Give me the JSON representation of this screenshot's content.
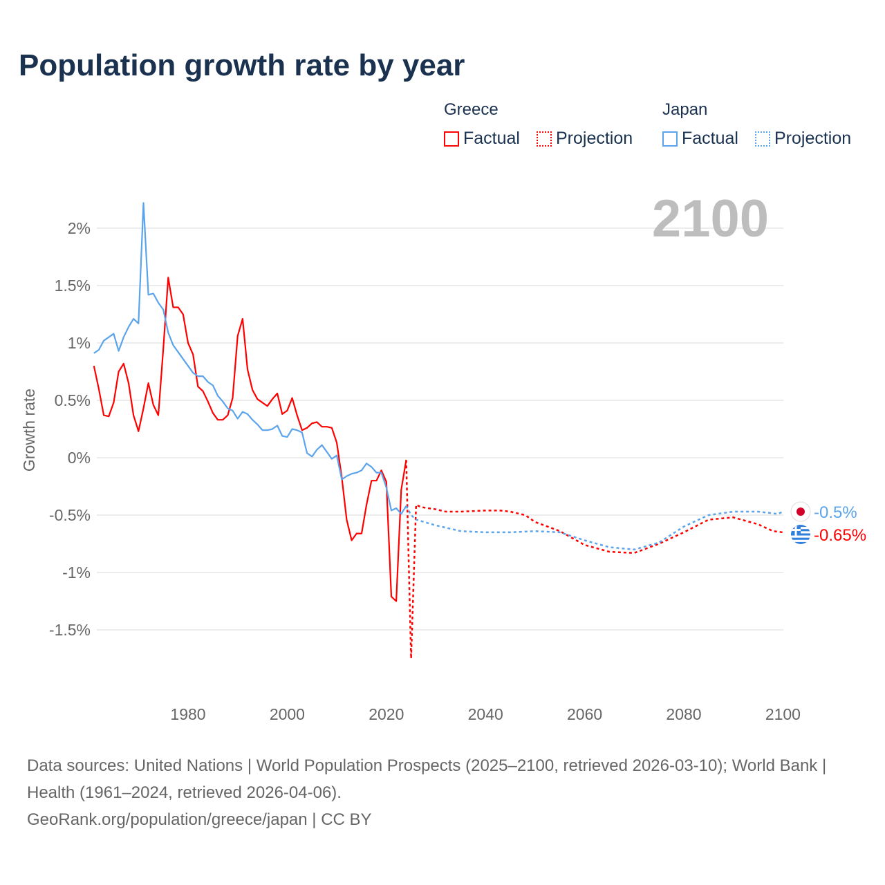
{
  "title": "Population growth rate by year",
  "legend": {
    "groups": [
      {
        "name": "Greece",
        "items": [
          "Factual",
          "Projection"
        ],
        "color": "#ff0000"
      },
      {
        "name": "Japan",
        "items": [
          "Factual",
          "Projection"
        ],
        "color": "#5ba4ec"
      }
    ]
  },
  "year_label": "2100",
  "footer": {
    "sources": "Data sources: United Nations | World Population Prospects (2025–2100, retrieved 2026-03-10); World Bank | Health (1961–2024, retrieved 2026-04-06).",
    "credit": "GeoRank.org/population/greece/japan | CC BY"
  },
  "chart_data": {
    "type": "line",
    "title": "Population growth rate by year",
    "ylabel": "Growth rate",
    "xlabel": "",
    "xlim": [
      1961,
      2100
    ],
    "ylim": [
      -2,
      2.3
    ],
    "x_ticks": [
      1980,
      2000,
      2020,
      2040,
      2060,
      2080,
      2100
    ],
    "y_ticks": [
      {
        "v": 2,
        "label": "2%"
      },
      {
        "v": 1.5,
        "label": "1.5%"
      },
      {
        "v": 1,
        "label": "1%"
      },
      {
        "v": 0.5,
        "label": "0.5%"
      },
      {
        "v": 0,
        "label": "0%"
      },
      {
        "v": -0.5,
        "label": "-0.5%"
      },
      {
        "v": -1,
        "label": "-1%"
      },
      {
        "v": -1.5,
        "label": "-1.5%"
      }
    ],
    "grid": true,
    "series": [
      {
        "name": "Greece Factual",
        "color": "#ff0000",
        "dashed": false,
        "start": 1961,
        "values": [
          0.8,
          0.6,
          0.37,
          0.36,
          0.48,
          0.75,
          0.82,
          0.65,
          0.37,
          0.23,
          0.43,
          0.65,
          0.46,
          0.37,
          0.95,
          1.57,
          1.31,
          1.31,
          1.25,
          1.0,
          0.9,
          0.62,
          0.58,
          0.49,
          0.39,
          0.33,
          0.33,
          0.37,
          0.52,
          1.06,
          1.21,
          0.77,
          0.59,
          0.51,
          0.48,
          0.45,
          0.51,
          0.56,
          0.38,
          0.41,
          0.52,
          0.37,
          0.24,
          0.26,
          0.3,
          0.31,
          0.27,
          0.27,
          0.26,
          0.13,
          -0.17,
          -0.54,
          -0.72,
          -0.66,
          -0.66,
          -0.41,
          -0.2,
          -0.2,
          -0.11,
          -0.21,
          -1.21,
          -1.25,
          -0.28,
          -0.02
        ]
      },
      {
        "name": "Greece Projection",
        "color": "#ff0000",
        "dashed": true,
        "x": [
          2024,
          2025,
          2026,
          2027,
          2030,
          2032,
          2035,
          2040,
          2043,
          2045,
          2048,
          2050,
          2055,
          2060,
          2065,
          2070,
          2075,
          2080,
          2085,
          2090,
          2095,
          2098,
          2100
        ],
        "values": [
          -0.02,
          -1.75,
          -0.41,
          -0.43,
          -0.45,
          -0.47,
          -0.47,
          -0.46,
          -0.46,
          -0.47,
          -0.5,
          -0.56,
          -0.64,
          -0.76,
          -0.82,
          -0.83,
          -0.75,
          -0.65,
          -0.54,
          -0.52,
          -0.58,
          -0.64,
          -0.65
        ],
        "end_label": "-0.65%"
      },
      {
        "name": "Japan Factual",
        "color": "#5ba4ec",
        "dashed": false,
        "start": 1961,
        "values": [
          0.91,
          0.94,
          1.02,
          1.05,
          1.08,
          0.93,
          1.05,
          1.14,
          1.21,
          1.17,
          2.22,
          1.42,
          1.43,
          1.35,
          1.29,
          1.09,
          0.98,
          0.92,
          0.86,
          0.8,
          0.74,
          0.71,
          0.71,
          0.66,
          0.63,
          0.54,
          0.49,
          0.43,
          0.41,
          0.34,
          0.4,
          0.38,
          0.33,
          0.29,
          0.24,
          0.24,
          0.25,
          0.28,
          0.19,
          0.18,
          0.25,
          0.24,
          0.22,
          0.04,
          0.01,
          0.07,
          0.11,
          0.05,
          -0.01,
          0.02,
          -0.19,
          -0.16,
          -0.14,
          -0.13,
          -0.11,
          -0.05,
          -0.08,
          -0.13,
          -0.13,
          -0.26,
          -0.46,
          -0.44,
          -0.49,
          -0.42
        ]
      },
      {
        "name": "Japan Projection",
        "color": "#5ba4ec",
        "dashed": true,
        "x": [
          2024,
          2025,
          2026,
          2030,
          2035,
          2040,
          2045,
          2050,
          2055,
          2060,
          2065,
          2070,
          2075,
          2080,
          2085,
          2090,
          2095,
          2099,
          2100
        ],
        "values": [
          -0.42,
          -0.5,
          -0.54,
          -0.59,
          -0.64,
          -0.65,
          -0.65,
          -0.64,
          -0.65,
          -0.72,
          -0.78,
          -0.8,
          -0.74,
          -0.6,
          -0.5,
          -0.47,
          -0.47,
          -0.49,
          -0.47
        ],
        "end_label": "-0.5%"
      }
    ]
  }
}
